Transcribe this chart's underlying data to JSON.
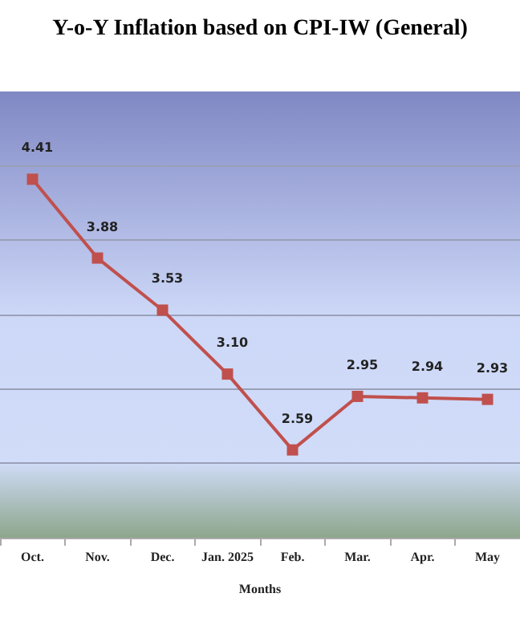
{
  "chart_data": {
    "type": "line",
    "title": "Y-o-Y Inflation based on CPI-IW (General)",
    "xlabel": "Months",
    "categories": [
      "Oct.",
      "Nov.",
      "Dec.",
      "Jan. 2025",
      "Feb.",
      "Mar.",
      "Apr.",
      "May"
    ],
    "series": [
      {
        "color": "#c0504d",
        "values": [
          4.41,
          3.88,
          3.53,
          3.1,
          2.59,
          2.95,
          2.94,
          2.93
        ],
        "value_labels": [
          "4.41",
          "3.88",
          "3.53",
          "3.10",
          "2.59",
          "2.95",
          "2.94",
          "2.93"
        ]
      }
    ],
    "ylim": [
      2,
      5
    ],
    "yticks": [
      {
        "value": 2.5,
        "label": null
      },
      {
        "value": 3,
        "label": null
      },
      {
        "value": 3.5,
        "label": null
      },
      {
        "value": 4,
        "label": null
      },
      {
        "value": 4.5,
        "label": null
      }
    ],
    "tick_labels": "x",
    "grid": "y",
    "marker": "square",
    "line_style": "solid"
  }
}
